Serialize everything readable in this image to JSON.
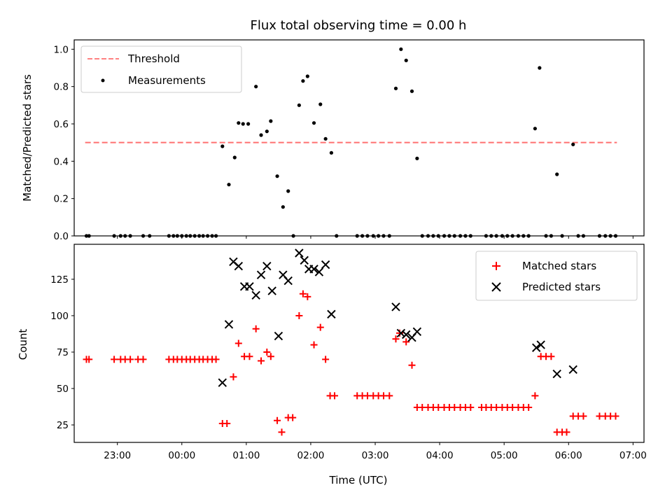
{
  "title": "Flux total observing time = 0.00 h",
  "xlabel": "Time (UTC)",
  "xticks": [
    "23:00",
    "00:00",
    "01:00",
    "02:00",
    "03:00",
    "04:00",
    "05:00",
    "06:00",
    "07:00"
  ],
  "colors": {
    "threshold": "#ff7070",
    "measurements": "#000000",
    "matched": "#ff0000",
    "predicted": "#000000"
  },
  "chart_data": [
    {
      "type": "scatter",
      "ylabel": "Matched/Predicted stars",
      "xlim": [
        -1.67,
        7.17
      ],
      "ylim": [
        0,
        1.05
      ],
      "yticks": [
        "0.0",
        "0.2",
        "0.4",
        "0.6",
        "0.8",
        "1.0"
      ],
      "legend": {
        "position": "top-left",
        "entries": [
          "Threshold",
          "Measurements"
        ]
      },
      "threshold": {
        "name": "Threshold",
        "value": 0.5,
        "x": [
          -1.5,
          6.75
        ]
      },
      "series": [
        {
          "name": "Measurements",
          "x": [
            -1.48,
            -1.44,
            -1.05,
            -0.95,
            -0.88,
            -0.8,
            -0.6,
            -0.5,
            -0.2,
            -0.13,
            -0.07,
            0,
            0.07,
            0.13,
            0.2,
            0.27,
            0.33,
            0.4,
            0.47,
            0.53,
            0.63,
            0.73,
            0.82,
            0.88,
            0.95,
            1.03,
            1.15,
            1.23,
            1.32,
            1.38,
            1.48,
            1.57,
            1.65,
            1.73,
            1.82,
            1.88,
            1.95,
            2.05,
            2.15,
            2.23,
            2.32,
            2.4,
            2.72,
            2.8,
            2.88,
            2.97,
            3.05,
            3.13,
            3.22,
            3.32,
            3.4,
            3.48,
            3.57,
            3.65,
            3.73,
            3.82,
            3.9,
            3.98,
            4.07,
            4.15,
            4.23,
            4.32,
            4.4,
            4.48,
            4.72,
            4.8,
            4.88,
            4.97,
            5.05,
            5.13,
            5.22,
            5.3,
            5.38,
            5.48,
            5.55,
            5.65,
            5.73,
            5.82,
            5.9,
            6.07,
            6.15,
            6.23,
            6.48,
            6.57,
            6.65,
            6.73
          ],
          "y": [
            0,
            0,
            0,
            0,
            0,
            0,
            0,
            0,
            0,
            0,
            0,
            0,
            0,
            0,
            0,
            0,
            0,
            0,
            0,
            0,
            0.48,
            0.275,
            0.42,
            0.605,
            0.6,
            0.6,
            0.8,
            0.54,
            0.56,
            0.615,
            0.32,
            0.155,
            0.24,
            0,
            0.7,
            0.83,
            0.855,
            0.605,
            0.705,
            0.52,
            0.445,
            0,
            0,
            0,
            0,
            0,
            0,
            0,
            0,
            0.79,
            1.0,
            0.94,
            0.775,
            0.415,
            0,
            0,
            0,
            0,
            0,
            0,
            0,
            0,
            0,
            0,
            0,
            0,
            0,
            0,
            0,
            0,
            0,
            0,
            0,
            0.575,
            0.9,
            0,
            0,
            0.33,
            0,
            0.49,
            0,
            0,
            0,
            0,
            0,
            0
          ]
        }
      ]
    },
    {
      "type": "scatter",
      "ylabel": "Count",
      "xlim": [
        -1.67,
        7.17
      ],
      "ylim": [
        13,
        149
      ],
      "yticks": [
        "25",
        "50",
        "75",
        "100",
        "125"
      ],
      "legend": {
        "position": "top-right",
        "entries": [
          "Matched stars",
          "Predicted stars"
        ]
      },
      "series": [
        {
          "name": "Matched stars",
          "x": [
            -1.48,
            -1.44,
            -1.05,
            -0.95,
            -0.88,
            -0.8,
            -0.68,
            -0.6,
            -0.2,
            -0.13,
            -0.07,
            0,
            0.07,
            0.13,
            0.2,
            0.27,
            0.33,
            0.4,
            0.47,
            0.53,
            0.63,
            0.7,
            0.8,
            0.88,
            0.97,
            1.05,
            1.15,
            1.23,
            1.32,
            1.38,
            1.48,
            1.55,
            1.65,
            1.72,
            1.82,
            1.88,
            1.95,
            2.05,
            2.15,
            2.23,
            2.3,
            2.37,
            2.72,
            2.8,
            2.88,
            2.97,
            3.05,
            3.13,
            3.22,
            3.32,
            3.38,
            3.48,
            3.57,
            3.65,
            3.73,
            3.82,
            3.9,
            3.98,
            4.07,
            4.15,
            4.23,
            4.32,
            4.4,
            4.48,
            4.65,
            4.72,
            4.8,
            4.88,
            4.97,
            5.05,
            5.13,
            5.22,
            5.3,
            5.38,
            5.48,
            5.57,
            5.65,
            5.73,
            5.82,
            5.9,
            5.97,
            6.07,
            6.15,
            6.23,
            6.48,
            6.57,
            6.65,
            6.73
          ],
          "y": [
            70,
            70,
            70,
            70,
            70,
            70,
            70,
            70,
            70,
            70,
            70,
            70,
            70,
            70,
            70,
            70,
            70,
            70,
            70,
            70,
            26,
            26,
            58,
            81,
            72,
            72,
            91,
            69,
            75,
            72,
            28,
            20,
            30,
            30,
            100,
            115,
            113,
            80,
            92,
            70,
            45,
            45,
            45,
            45,
            45,
            45,
            45,
            45,
            45,
            84,
            88,
            82,
            66,
            37,
            37,
            37,
            37,
            37,
            37,
            37,
            37,
            37,
            37,
            37,
            37,
            37,
            37,
            37,
            37,
            37,
            37,
            37,
            37,
            37,
            45,
            72,
            72,
            72,
            20,
            20,
            20,
            31,
            31,
            31,
            31,
            31,
            31,
            31
          ]
        },
        {
          "name": "Predicted stars",
          "x": [
            0.63,
            0.73,
            0.8,
            0.88,
            0.97,
            1.05,
            1.15,
            1.23,
            1.32,
            1.4,
            1.5,
            1.57,
            1.65,
            1.82,
            1.9,
            1.97,
            2.05,
            2.13,
            2.23,
            2.32,
            3.32,
            3.4,
            3.48,
            3.57,
            3.65,
            5.5,
            5.57,
            5.82,
            6.07
          ],
          "y": [
            54,
            94,
            137,
            134,
            120,
            120,
            114,
            128,
            134,
            117,
            86,
            128,
            124,
            143,
            138,
            132,
            132,
            130,
            135,
            101,
            106,
            88,
            87,
            85,
            89,
            78,
            80,
            60,
            63
          ]
        }
      ]
    }
  ]
}
